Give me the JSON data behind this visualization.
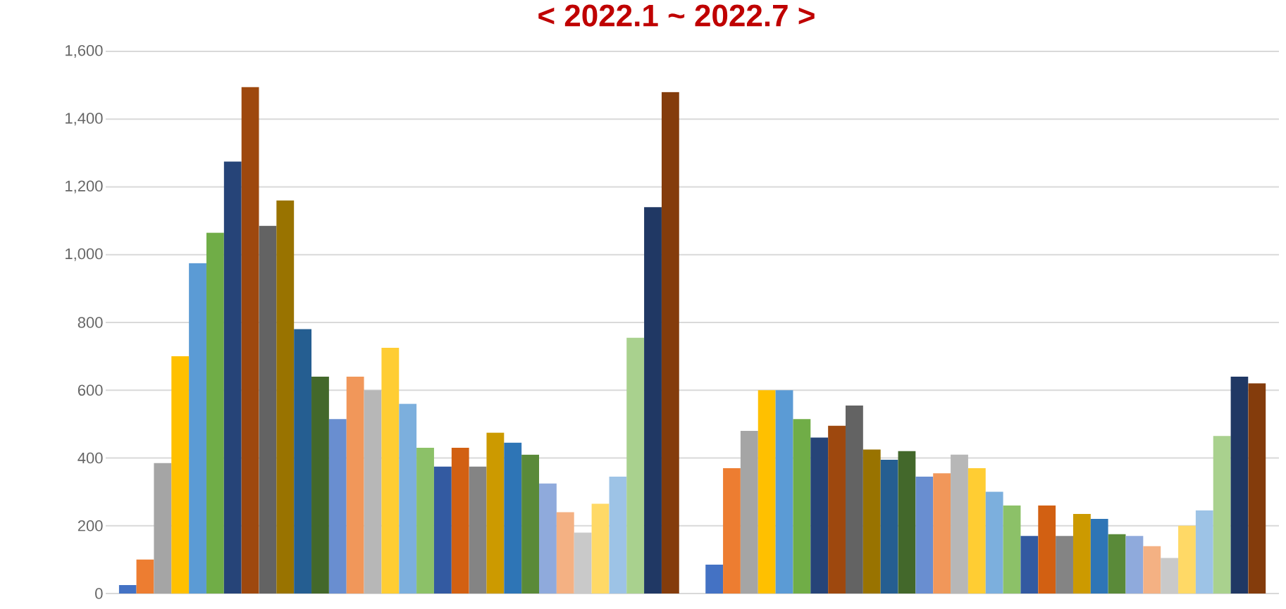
{
  "chart_data": {
    "type": "bar",
    "title": "< 2022.1 ~ 2022.7 >",
    "categories": [
      null,
      null
    ],
    "series": [
      {
        "color": "#4472c4",
        "values": [
          25,
          85
        ]
      },
      {
        "color": "#ed7d31",
        "values": [
          100,
          370
        ]
      },
      {
        "color": "#a5a5a5",
        "values": [
          385,
          480
        ]
      },
      {
        "color": "#ffc000",
        "values": [
          700,
          600
        ]
      },
      {
        "color": "#5b9bd5",
        "values": [
          975,
          600
        ]
      },
      {
        "color": "#70ad47",
        "values": [
          1065,
          515
        ]
      },
      {
        "color": "#264478",
        "values": [
          1275,
          460
        ]
      },
      {
        "color": "#9e480e",
        "values": [
          1495,
          495
        ]
      },
      {
        "color": "#636363",
        "values": [
          1085,
          555
        ]
      },
      {
        "color": "#997300",
        "values": [
          1160,
          425
        ]
      },
      {
        "color": "#255e91",
        "values": [
          780,
          395
        ]
      },
      {
        "color": "#43682b",
        "values": [
          640,
          420
        ]
      },
      {
        "color": "#698ed0",
        "values": [
          515,
          345
        ]
      },
      {
        "color": "#f1975a",
        "values": [
          640,
          355
        ]
      },
      {
        "color": "#b7b7b7",
        "values": [
          600,
          410
        ]
      },
      {
        "color": "#ffcd33",
        "values": [
          725,
          370
        ]
      },
      {
        "color": "#7cafdd",
        "values": [
          560,
          300
        ]
      },
      {
        "color": "#8cc168",
        "values": [
          430,
          260
        ]
      },
      {
        "color": "#335aa1",
        "values": [
          375,
          170
        ]
      },
      {
        "color": "#d26012",
        "values": [
          430,
          260
        ]
      },
      {
        "color": "#848484",
        "values": [
          375,
          170
        ]
      },
      {
        "color": "#cc9a00",
        "values": [
          475,
          235
        ]
      },
      {
        "color": "#2e75b6",
        "values": [
          445,
          220
        ]
      },
      {
        "color": "#5a8a39",
        "values": [
          410,
          175
        ]
      },
      {
        "color": "#8faadc",
        "values": [
          325,
          170
        ]
      },
      {
        "color": "#f4b183",
        "values": [
          240,
          140
        ]
      },
      {
        "color": "#c9c9c9",
        "values": [
          180,
          105
        ]
      },
      {
        "color": "#ffd966",
        "values": [
          265,
          200
        ]
      },
      {
        "color": "#9dc3e6",
        "values": [
          345,
          245
        ]
      },
      {
        "color": "#a9d18e",
        "values": [
          755,
          465
        ]
      },
      {
        "color": "#203864",
        "values": [
          1140,
          640
        ]
      },
      {
        "color": "#843c0c",
        "values": [
          1480,
          620
        ]
      }
    ],
    "ylim": [
      0,
      1600
    ],
    "yticks": [
      0,
      200,
      400,
      600,
      800,
      {
        "value": 1000,
        "label": "1,000"
      },
      {
        "value": 1200,
        "label": "1,200"
      },
      {
        "value": 1400,
        "label": "1,400"
      },
      {
        "value": 1600,
        "label": "1,600"
      }
    ],
    "grid": "y"
  }
}
